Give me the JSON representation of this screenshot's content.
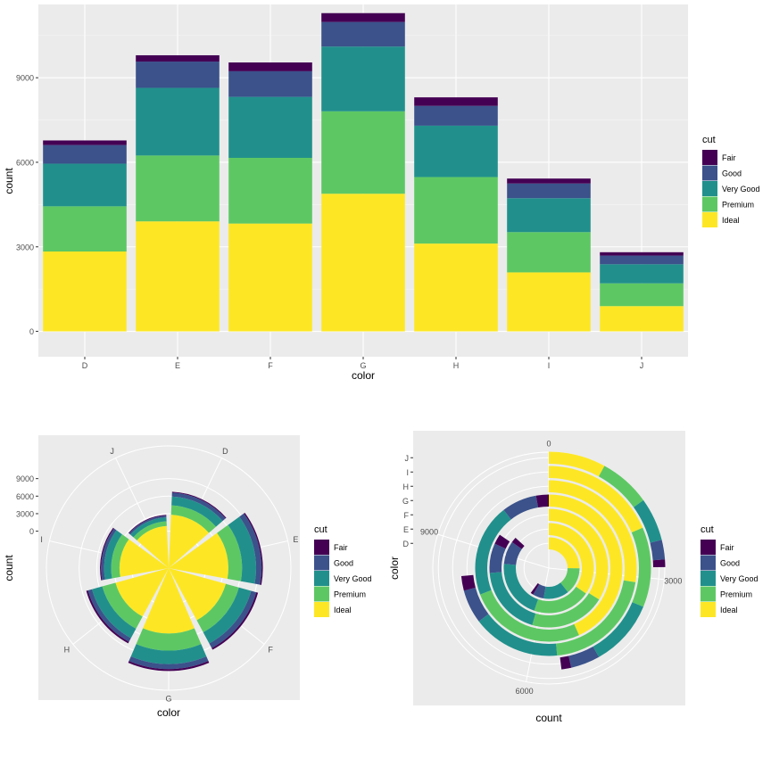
{
  "chart_data": [
    {
      "type": "bar",
      "stacked": true,
      "xlabel": "color",
      "ylabel": "count",
      "categories": [
        "D",
        "E",
        "F",
        "G",
        "H",
        "I",
        "J"
      ],
      "ylim": [
        -900,
        11600
      ],
      "yticks": [
        0,
        3000,
        6000,
        9000
      ],
      "ytick_labels": [
        "0",
        "3000",
        "6000",
        "9000"
      ],
      "legend_title": "cut",
      "legend_position": "right",
      "series": [
        {
          "name": "Fair",
          "color": "#440154",
          "values": [
            163,
            224,
            312,
            314,
            303,
            175,
            119
          ]
        },
        {
          "name": "Good",
          "color": "#3B528B",
          "values": [
            662,
            933,
            909,
            871,
            702,
            522,
            307
          ]
        },
        {
          "name": "Very Good",
          "color": "#21908C",
          "values": [
            1513,
            2400,
            2164,
            2299,
            1824,
            1204,
            678
          ]
        },
        {
          "name": "Premium",
          "color": "#5DC863",
          "values": [
            1603,
            2337,
            2331,
            2924,
            2360,
            1428,
            808
          ]
        },
        {
          "name": "Ideal",
          "color": "#FDE725",
          "values": [
            2834,
            3903,
            3826,
            4884,
            3115,
            2093,
            896
          ]
        }
      ]
    },
    {
      "type": "bar",
      "coord": "polar",
      "stacked": true,
      "xlabel": "color",
      "ylabel": "count",
      "categories": [
        "D",
        "E",
        "F",
        "G",
        "H",
        "I",
        "J"
      ],
      "yticks": [
        0,
        3000,
        6000,
        9000
      ],
      "ytick_labels": [
        "0",
        "3000",
        "6000",
        "9000"
      ],
      "legend_title": "cut",
      "legend_position": "right",
      "series_ref": "same values as first chart"
    },
    {
      "type": "bar",
      "coord": "polar-theta-y",
      "stacked": true,
      "xlabel": "count",
      "ylabel": "color",
      "categories": [
        "D",
        "E",
        "F",
        "G",
        "H",
        "I",
        "J"
      ],
      "angle_ticks": [
        0,
        3000,
        6000,
        9000
      ],
      "angle_tick_labels": [
        "0",
        "3000",
        "6000",
        "9000"
      ],
      "legend_title": "cut",
      "legend_position": "right",
      "series_ref": "same values as first chart"
    }
  ],
  "legend": {
    "title": "cut",
    "items": [
      "Fair",
      "Good",
      "Very Good",
      "Premium",
      "Ideal"
    ]
  }
}
